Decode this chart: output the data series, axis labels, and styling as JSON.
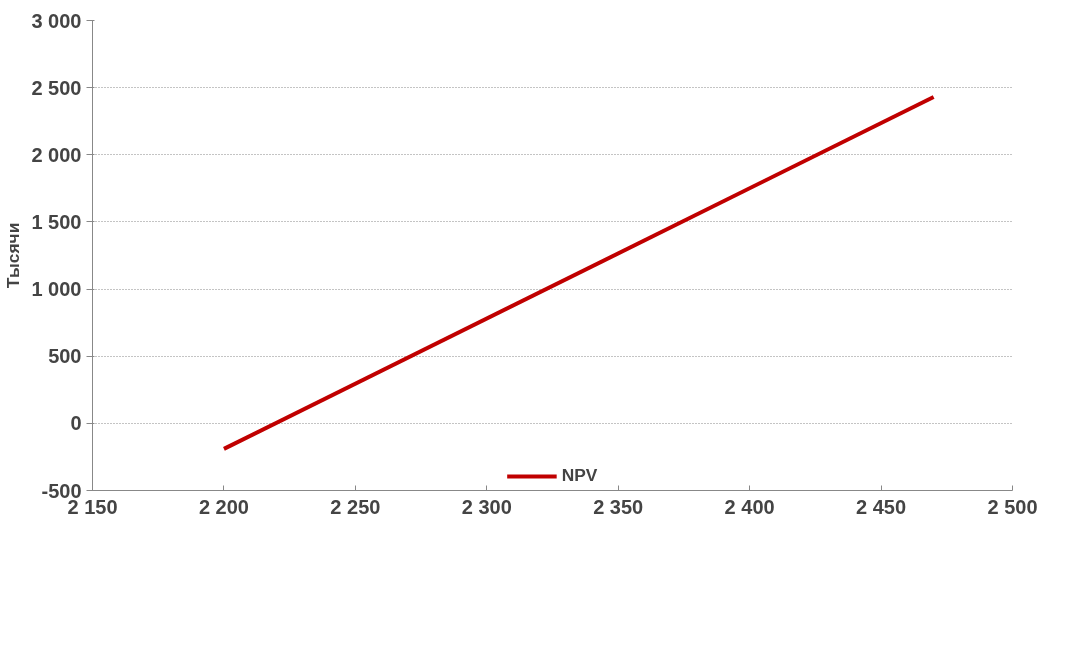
{
  "chart_data": {
    "type": "line",
    "ylabel": "Тысячи",
    "x": [
      2200,
      2470
    ],
    "series": [
      {
        "name": "NPV",
        "color": "#c00000",
        "values": [
          -190,
          2430
        ]
      }
    ],
    "xlim": [
      2150,
      2500
    ],
    "xticks": [
      {
        "value": 2150,
        "label": "2 150"
      },
      {
        "value": 2200,
        "label": "2 200"
      },
      {
        "value": 2250,
        "label": "2 250"
      },
      {
        "value": 2300,
        "label": "2 300"
      },
      {
        "value": 2350,
        "label": "2 350"
      },
      {
        "value": 2400,
        "label": "2 400"
      },
      {
        "value": 2450,
        "label": "2 450"
      },
      {
        "value": 2500,
        "label": "2 500"
      }
    ],
    "ylim": [
      -500,
      3000
    ],
    "yticks": [
      -500,
      0,
      500,
      {
        "value": 1000,
        "label": "1 000"
      },
      {
        "value": 1500,
        "label": "1 500"
      },
      {
        "value": 2000,
        "label": "2 000"
      },
      {
        "value": 2500,
        "label": "2 500"
      },
      {
        "value": 3000,
        "label": "3 000"
      }
    ],
    "grid": "y",
    "legend": "bottom",
    "marker": "none",
    "line_style": "solid"
  }
}
